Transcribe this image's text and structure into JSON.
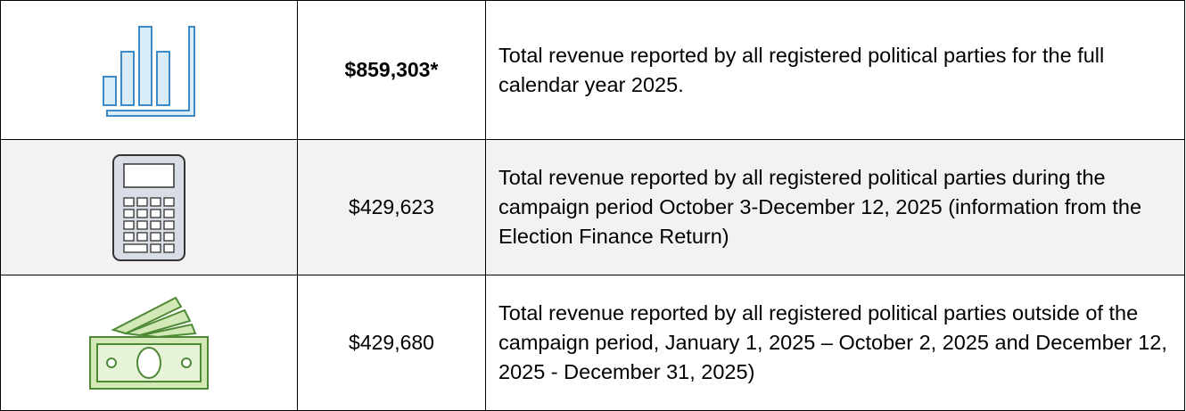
{
  "table": {
    "rows": [
      {
        "amount": "$859,303*",
        "description": "Total revenue reported by all registered political parties for the full calendar year 2025."
      },
      {
        "amount": "$429,623",
        "description": "Total revenue reported by all registered political parties during the campaign period October 3-December 12, 2025 (information from the Election Finance Return)"
      },
      {
        "amount": "$429,680",
        "description": "Total revenue reported by all registered political parties outside of the campaign period, January 1, 2025 – October 2, 2025 and December 12, 2025 - December 31, 2025)"
      }
    ]
  }
}
